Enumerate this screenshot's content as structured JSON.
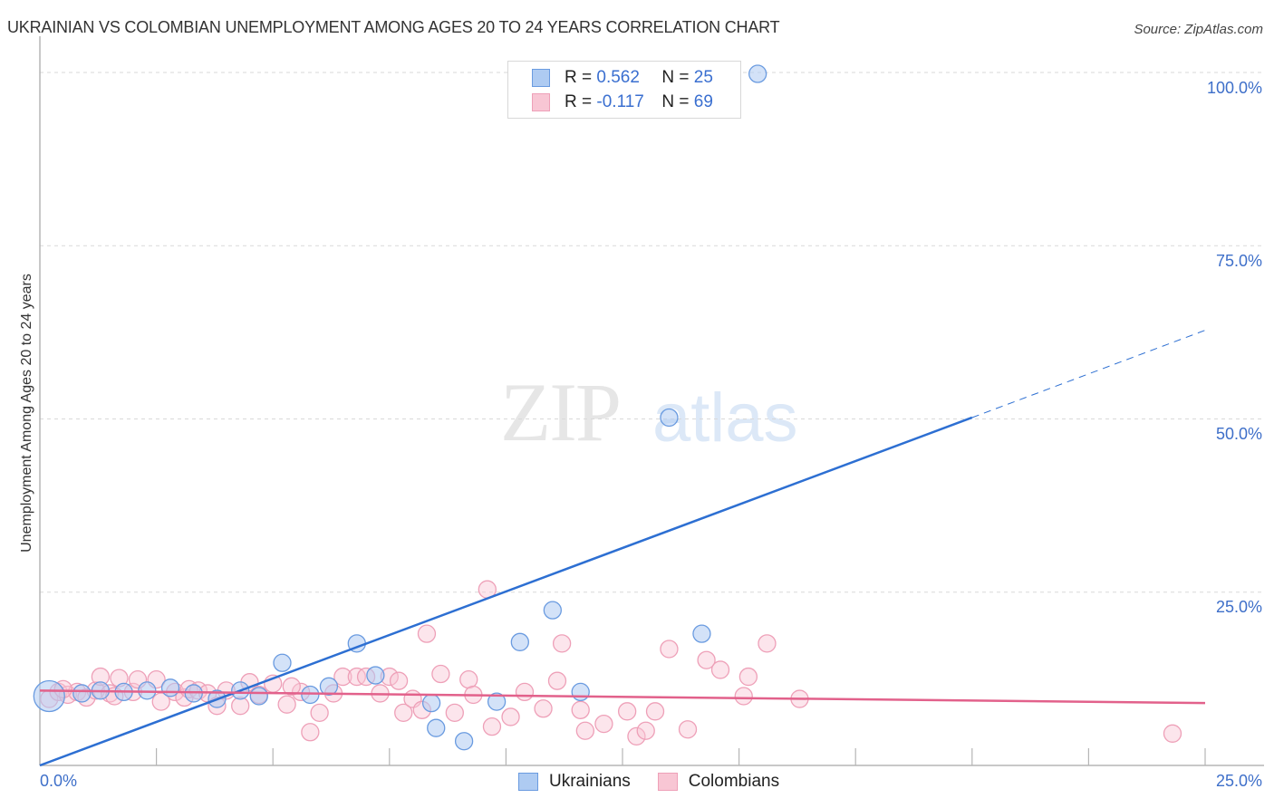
{
  "header": {
    "title": "UKRAINIAN VS COLOMBIAN UNEMPLOYMENT AMONG AGES 20 TO 24 YEARS CORRELATION CHART",
    "source": "Source: ZipAtlas.com"
  },
  "watermark": {
    "zip": "ZIP",
    "atlas": "atlas"
  },
  "legend": {
    "rows": [
      {
        "r_label": "R = ",
        "r_value": "0.562",
        "n_label": "N = ",
        "n_value": "25",
        "color": "#aecbf2",
        "border": "#6a9be0"
      },
      {
        "r_label": "R = ",
        "r_value": "-0.117",
        "n_label": "N = ",
        "n_value": "69",
        "color": "#f8c6d4",
        "border": "#eea0b8"
      }
    ]
  },
  "bottom_legend": [
    {
      "label": "Ukrainians",
      "color": "#aecbf2",
      "border": "#6a9be0"
    },
    {
      "label": "Colombians",
      "color": "#f8c6d4",
      "border": "#eea0b8"
    }
  ],
  "axes": {
    "ylabel": "Unemployment Among Ages 20 to 24 years",
    "yticks": [
      "100.0%",
      "75.0%",
      "50.0%",
      "25.0%"
    ],
    "xtick_left": "0.0%",
    "xtick_right": "25.0%"
  },
  "chart_data": {
    "type": "scatter",
    "title": "UKRAINIAN VS COLOMBIAN UNEMPLOYMENT AMONG AGES 20 TO 24 YEARS CORRELATION CHART",
    "xlabel": "",
    "ylabel": "Unemployment Among Ages 20 to 24 years",
    "xlim": [
      0,
      25
    ],
    "ylim": [
      0,
      100
    ],
    "x_ticks": [
      "0.0%",
      "25.0%"
    ],
    "y_ticks": [
      "25.0%",
      "50.0%",
      "75.0%",
      "100.0%"
    ],
    "grid": "horizontal dashed",
    "legend_position": "top-center",
    "series": [
      {
        "name": "Ukrainians",
        "color": "#6a9be0",
        "R": 0.562,
        "N": 25,
        "trendline": {
          "x": [
            0,
            20,
            25
          ],
          "y": [
            0,
            50.2,
            62.8
          ],
          "dashed_after_x": 20
        },
        "points": [
          {
            "x": 0.2,
            "y": 10.0,
            "size": "large"
          },
          {
            "x": 1.3,
            "y": 10.8
          },
          {
            "x": 1.8,
            "y": 10.6
          },
          {
            "x": 2.3,
            "y": 10.8
          },
          {
            "x": 2.8,
            "y": 11.2
          },
          {
            "x": 3.3,
            "y": 10.4
          },
          {
            "x": 3.8,
            "y": 9.6
          },
          {
            "x": 4.3,
            "y": 10.8
          },
          {
            "x": 4.7,
            "y": 10.0
          },
          {
            "x": 5.8,
            "y": 10.2
          },
          {
            "x": 5.2,
            "y": 14.8
          },
          {
            "x": 6.2,
            "y": 11.4
          },
          {
            "x": 6.8,
            "y": 17.6
          },
          {
            "x": 7.2,
            "y": 13.0
          },
          {
            "x": 8.4,
            "y": 9.0
          },
          {
            "x": 8.5,
            "y": 5.4
          },
          {
            "x": 9.1,
            "y": 3.5
          },
          {
            "x": 9.8,
            "y": 9.2
          },
          {
            "x": 10.3,
            "y": 17.8
          },
          {
            "x": 11.0,
            "y": 22.4
          },
          {
            "x": 11.6,
            "y": 10.6
          },
          {
            "x": 13.5,
            "y": 50.2
          },
          {
            "x": 14.2,
            "y": 19.0
          },
          {
            "x": 15.4,
            "y": 99.8
          },
          {
            "x": 0.9,
            "y": 10.4
          }
        ]
      },
      {
        "name": "Colombians",
        "color": "#eea0b8",
        "R": -0.117,
        "N": 69,
        "trendline": {
          "x": [
            0,
            25
          ],
          "y": [
            10.8,
            9.0
          ]
        },
        "points": [
          {
            "x": 0.2,
            "y": 9.6
          },
          {
            "x": 0.4,
            "y": 10.6
          },
          {
            "x": 0.6,
            "y": 10.2
          },
          {
            "x": 0.8,
            "y": 10.6
          },
          {
            "x": 1.0,
            "y": 9.8
          },
          {
            "x": 1.2,
            "y": 10.8
          },
          {
            "x": 1.3,
            "y": 12.8
          },
          {
            "x": 1.5,
            "y": 10.4
          },
          {
            "x": 1.7,
            "y": 12.6
          },
          {
            "x": 2.0,
            "y": 10.6
          },
          {
            "x": 2.1,
            "y": 12.4
          },
          {
            "x": 2.5,
            "y": 12.4
          },
          {
            "x": 2.6,
            "y": 9.2
          },
          {
            "x": 2.9,
            "y": 10.6
          },
          {
            "x": 3.1,
            "y": 9.8
          },
          {
            "x": 3.2,
            "y": 11.0
          },
          {
            "x": 3.4,
            "y": 10.8
          },
          {
            "x": 3.6,
            "y": 10.4
          },
          {
            "x": 3.8,
            "y": 8.6
          },
          {
            "x": 4.0,
            "y": 10.8
          },
          {
            "x": 4.3,
            "y": 8.6
          },
          {
            "x": 4.5,
            "y": 12.0
          },
          {
            "x": 4.7,
            "y": 10.2
          },
          {
            "x": 5.0,
            "y": 11.8
          },
          {
            "x": 5.3,
            "y": 8.8
          },
          {
            "x": 5.6,
            "y": 10.6
          },
          {
            "x": 5.8,
            "y": 4.8
          },
          {
            "x": 6.0,
            "y": 7.6
          },
          {
            "x": 6.3,
            "y": 10.4
          },
          {
            "x": 6.5,
            "y": 12.8
          },
          {
            "x": 6.8,
            "y": 12.8
          },
          {
            "x": 7.0,
            "y": 12.8
          },
          {
            "x": 7.3,
            "y": 10.4
          },
          {
            "x": 7.5,
            "y": 12.8
          },
          {
            "x": 7.7,
            "y": 12.2
          },
          {
            "x": 7.8,
            "y": 7.6
          },
          {
            "x": 8.0,
            "y": 9.6
          },
          {
            "x": 8.2,
            "y": 8.0
          },
          {
            "x": 8.3,
            "y": 19.0
          },
          {
            "x": 8.6,
            "y": 13.2
          },
          {
            "x": 8.9,
            "y": 7.6
          },
          {
            "x": 9.2,
            "y": 12.4
          },
          {
            "x": 9.3,
            "y": 10.2
          },
          {
            "x": 9.6,
            "y": 25.4
          },
          {
            "x": 9.7,
            "y": 5.6
          },
          {
            "x": 10.1,
            "y": 7.0
          },
          {
            "x": 10.4,
            "y": 10.6
          },
          {
            "x": 10.8,
            "y": 8.2
          },
          {
            "x": 11.1,
            "y": 12.2
          },
          {
            "x": 11.2,
            "y": 17.6
          },
          {
            "x": 11.6,
            "y": 8.0
          },
          {
            "x": 11.7,
            "y": 5.0
          },
          {
            "x": 12.1,
            "y": 6.0
          },
          {
            "x": 12.6,
            "y": 7.8
          },
          {
            "x": 12.8,
            "y": 4.2
          },
          {
            "x": 13.0,
            "y": 5.0
          },
          {
            "x": 13.2,
            "y": 7.8
          },
          {
            "x": 13.5,
            "y": 16.8
          },
          {
            "x": 13.9,
            "y": 5.2
          },
          {
            "x": 14.3,
            "y": 15.2
          },
          {
            "x": 14.6,
            "y": 13.8
          },
          {
            "x": 15.1,
            "y": 10.0
          },
          {
            "x": 15.2,
            "y": 12.8
          },
          {
            "x": 15.6,
            "y": 17.6
          },
          {
            "x": 16.3,
            "y": 9.6
          },
          {
            "x": 1.6,
            "y": 10.0
          },
          {
            "x": 5.4,
            "y": 11.4
          },
          {
            "x": 24.3,
            "y": 4.6
          },
          {
            "x": 0.5,
            "y": 11.0
          }
        ]
      }
    ]
  }
}
